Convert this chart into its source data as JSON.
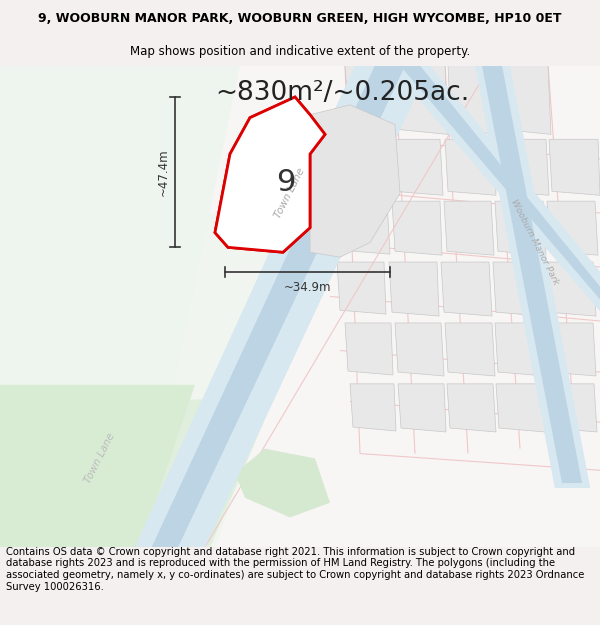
{
  "title_line1": "9, WOOBURN MANOR PARK, WOOBURN GREEN, HIGH WYCOMBE, HP10 0ET",
  "title_line2": "Map shows position and indicative extent of the property.",
  "area_text": "~830m²/~0.205ac.",
  "dim_width": "~34.9m",
  "dim_height": "~47.4m",
  "plot_number": "9",
  "footer_text": "Contains OS data © Crown copyright and database right 2021. This information is subject to Crown copyright and database rights 2023 and is reproduced with the permission of HM Land Registry. The polygons (including the associated geometry, namely x, y co-ordinates) are subject to Crown copyright and database rights 2023 Ordnance Survey 100026316.",
  "bg_color": "#f5f0f0",
  "map_bg": "#ffffff",
  "road_blue": "#c8dce8",
  "road_blue_light": "#ddeaf3",
  "road_pink": "#f0c8c8",
  "property_fill": "#ffffff",
  "property_border": "#dd0000",
  "block_fill": "#e8e8e8",
  "block_edge": "#c0b0b0",
  "green_fill": "#dcecd8",
  "title_fontsize": 9,
  "subtitle_fontsize": 8.5,
  "area_fontsize": 19,
  "footer_fontsize": 7.2,
  "label_color": "#aaaaaa",
  "dim_arrow_color": "#333333"
}
